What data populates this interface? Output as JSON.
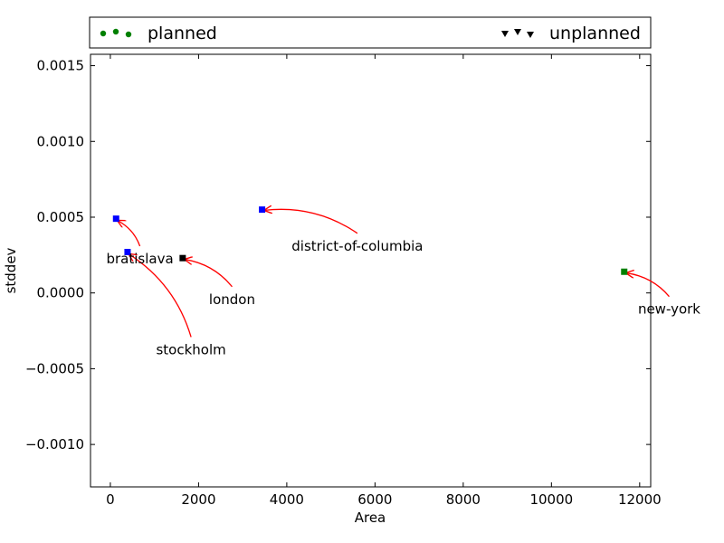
{
  "chart_data": {
    "type": "scatter",
    "xlabel": "Area",
    "ylabel": "stddev",
    "xlim": [
      -450,
      12250
    ],
    "ylim": [
      -0.00128,
      0.001575
    ],
    "xticks": [
      0,
      2000,
      4000,
      6000,
      8000,
      10000,
      12000
    ],
    "xtick_labels": [
      "0",
      "2000",
      "4000",
      "6000",
      "8000",
      "10000",
      "12000"
    ],
    "yticks": [
      -0.001,
      -0.0005,
      0.0,
      0.0005,
      0.001,
      0.0015
    ],
    "ytick_labels": [
      "−0.0010",
      "−0.0005",
      "0.0000",
      "0.0005",
      "0.0010",
      "0.0015"
    ],
    "legend": {
      "placement": "top-outside",
      "entries": [
        {
          "label": "planned",
          "color": "#008000",
          "marker": "circle"
        },
        {
          "label": "unplanned",
          "color": "#000000",
          "marker": "triangle-down"
        }
      ]
    },
    "series": [
      {
        "color": "#0000ff",
        "marker": "square",
        "points": [
          {
            "x": 130,
            "y": 0.00049
          },
          {
            "x": 390,
            "y": 0.00027
          },
          {
            "x": 3440,
            "y": 0.00055
          }
        ]
      },
      {
        "color": "#000000",
        "marker": "square",
        "points": [
          {
            "x": 1640,
            "y": 0.00023
          }
        ]
      },
      {
        "color": "#008000",
        "marker": "square",
        "points": [
          {
            "x": 11650,
            "y": 0.00014
          }
        ]
      }
    ],
    "annotations": [
      {
        "text": "bratislava",
        "x": 130,
        "y": 0.00049,
        "text_x": 670,
        "text_y": 0.000225
      },
      {
        "text": "stockholm",
        "x": 390,
        "y": 0.00027,
        "text_x": 1830,
        "text_y": -0.000375
      },
      {
        "text": "london",
        "x": 1640,
        "y": 0.00023,
        "text_x": 2760,
        "text_y": -4.25e-05
      },
      {
        "text": "district-of-columbia",
        "x": 3440,
        "y": 0.00055,
        "text_x": 5600,
        "text_y": 0.00031
      },
      {
        "text": "new-york",
        "x": 11650,
        "y": 0.00014,
        "text_x": 12670,
        "text_y": -0.0001075
      }
    ],
    "arrow_color": "#ff0000"
  }
}
